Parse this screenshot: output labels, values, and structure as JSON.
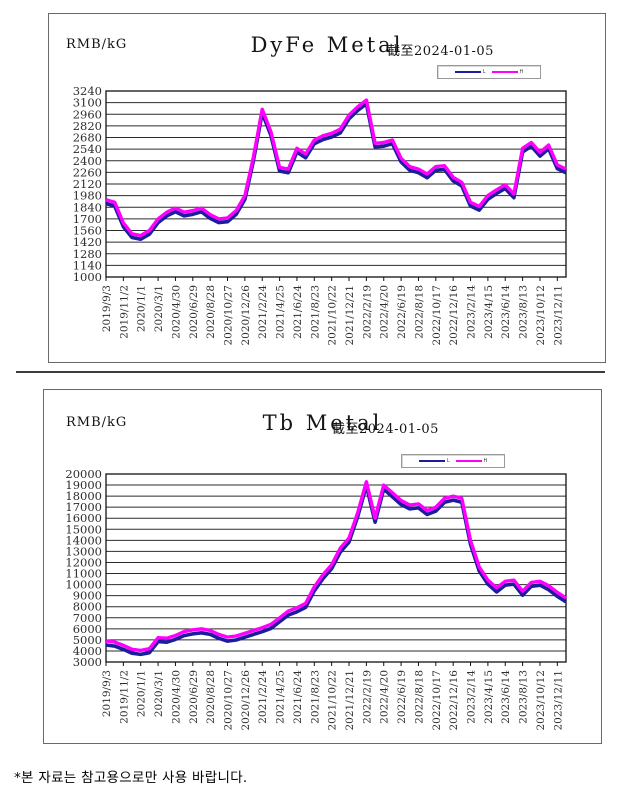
{
  "page": {
    "footnote": "*본 자료는 참고용으로만 사용 바랍니다."
  },
  "chart_data": [
    {
      "type": "line",
      "title": "DyFe Metal",
      "subtitle": "截至2024-01-05",
      "ylabel": "RMB/kG",
      "xlabel": "",
      "ylim": [
        1000,
        3240
      ],
      "ystep": 140,
      "grid": true,
      "legend_position": "top-right",
      "categories": [
        "2019/9/3",
        "2019/11/2",
        "2020/1/1",
        "2020/3/1",
        "2020/4/30",
        "2020/6/29",
        "2020/8/28",
        "2020/10/27",
        "2020/12/26",
        "2021/2/24",
        "2021/4/25",
        "2021/6/24",
        "2021/8/23",
        "2021/10/22",
        "2021/12/21",
        "2022/2/19",
        "2022/4/20",
        "2022/6/19",
        "2022/8/18",
        "2022/10/17",
        "2022/12/16",
        "2023/2/14",
        "2023/4/15",
        "2023/6/14",
        "2023/8/13",
        "2023/10/12",
        "2023/12/11"
      ],
      "series": [
        {
          "name": "L",
          "color": "#1c1c9e",
          "values": [
            1900,
            1870,
            1620,
            1490,
            1470,
            1530,
            1670,
            1750,
            1800,
            1750,
            1770,
            1800,
            1720,
            1670,
            1680,
            1770,
            1950,
            2420,
            2990,
            2720,
            2290,
            2270,
            2520,
            2450,
            2620,
            2670,
            2700,
            2750,
            2920,
            3020,
            3100,
            2580,
            2590,
            2620,
            2400,
            2300,
            2270,
            2210,
            2300,
            2310,
            2170,
            2110,
            1870,
            1820,
            1950,
            2020,
            2080,
            1970,
            2520,
            2590,
            2470,
            2560,
            2320,
            2270
          ]
        },
        {
          "name": "H",
          "color": "#ff00ff",
          "values": [
            1930,
            1900,
            1650,
            1520,
            1500,
            1560,
            1700,
            1780,
            1830,
            1780,
            1800,
            1830,
            1750,
            1700,
            1710,
            1800,
            1980,
            2450,
            3020,
            2750,
            2320,
            2300,
            2550,
            2480,
            2650,
            2700,
            2730,
            2780,
            2950,
            3050,
            3130,
            2610,
            2620,
            2650,
            2430,
            2330,
            2300,
            2240,
            2330,
            2340,
            2200,
            2140,
            1900,
            1850,
            1980,
            2050,
            2110,
            2000,
            2550,
            2620,
            2500,
            2590,
            2350,
            2300
          ]
        }
      ]
    },
    {
      "type": "line",
      "title": "Tb Metal",
      "subtitle": "截至2024-01-05",
      "ylabel": "RMB/kG",
      "xlabel": "",
      "ylim": [
        3000,
        20000
      ],
      "ystep": 1000,
      "grid": true,
      "legend_position": "top-right",
      "categories": [
        "2019/9/3",
        "2019/11/2",
        "2020/1/1",
        "2020/3/1",
        "2020/4/30",
        "2020/6/29",
        "2020/8/28",
        "2020/10/27",
        "2020/12/26",
        "2021/2/24",
        "2021/4/25",
        "2021/6/24",
        "2021/8/23",
        "2021/10/22",
        "2021/12/21",
        "2022/2/19",
        "2022/4/20",
        "2022/6/19",
        "2022/8/18",
        "2022/10/17",
        "2022/12/16",
        "2023/2/14",
        "2023/4/15",
        "2023/6/14",
        "2023/8/13",
        "2023/10/12",
        "2023/12/11"
      ],
      "series": [
        {
          "name": "L",
          "color": "#1c1c9e",
          "values": [
            4650,
            4550,
            4250,
            3900,
            3800,
            3950,
            4950,
            4900,
            5150,
            5500,
            5650,
            5750,
            5600,
            5250,
            5000,
            5100,
            5350,
            5600,
            5850,
            6150,
            6750,
            7350,
            7650,
            8050,
            9550,
            10650,
            11550,
            13050,
            13950,
            16250,
            19050,
            15750,
            18750,
            18050,
            17350,
            16950,
            17050,
            16450,
            16750,
            17550,
            17750,
            17550,
            13750,
            11350,
            10150,
            9450,
            10050,
            10150,
            9150,
            9950,
            10050,
            9650,
            9050,
            8550
          ]
        },
        {
          "name": "H",
          "color": "#ff00ff",
          "values": [
            4900,
            4800,
            4500,
            4150,
            4050,
            4200,
            5200,
            5150,
            5400,
            5750,
            5900,
            6000,
            5850,
            5500,
            5250,
            5350,
            5600,
            5850,
            6100,
            6400,
            7000,
            7600,
            7900,
            8300,
            9800,
            10900,
            11800,
            13300,
            14200,
            16500,
            19300,
            16000,
            19000,
            18300,
            17600,
            17200,
            17300,
            16700,
            17000,
            17800,
            18000,
            17800,
            14000,
            11600,
            10400,
            9700,
            10300,
            10400,
            9400,
            10200,
            10300,
            9900,
            9300,
            8800
          ]
        }
      ]
    }
  ]
}
